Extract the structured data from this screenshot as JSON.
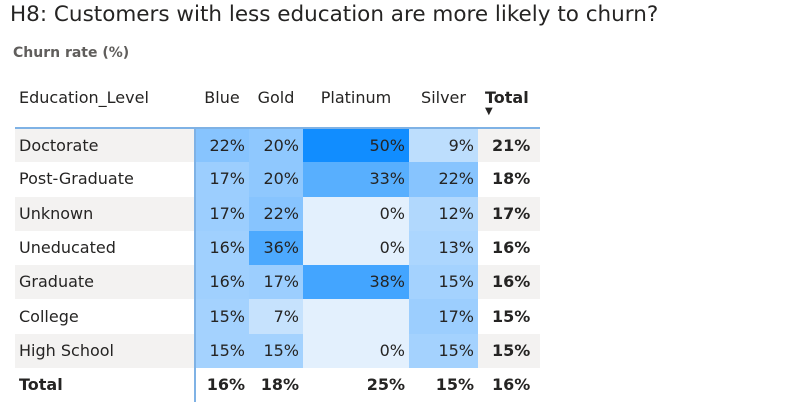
{
  "header": {
    "title": "H8: Customers with less education are more likely to churn?",
    "subtitle": "Churn rate (%)"
  },
  "chart_data": {
    "type": "table",
    "title": "H8: Customers with less education are more likely to churn?",
    "subtitle": "Churn rate (%)",
    "row_header": "Education_Level",
    "columns": [
      "Blue",
      "Gold",
      "Platinum",
      "Silver",
      "Total"
    ],
    "sort": {
      "column": "Total",
      "direction": "descending"
    },
    "rows": [
      {
        "label": "Doctorate",
        "values": [
          "22%",
          "20%",
          "50%",
          "9%",
          "21%"
        ]
      },
      {
        "label": "Post-Graduate",
        "values": [
          "17%",
          "20%",
          "33%",
          "22%",
          "18%"
        ]
      },
      {
        "label": "Unknown",
        "values": [
          "17%",
          "22%",
          "0%",
          "12%",
          "17%"
        ]
      },
      {
        "label": "Uneducated",
        "values": [
          "16%",
          "36%",
          "0%",
          "13%",
          "16%"
        ]
      },
      {
        "label": "Graduate",
        "values": [
          "16%",
          "17%",
          "38%",
          "15%",
          "16%"
        ]
      },
      {
        "label": "College",
        "values": [
          "15%",
          "7%",
          "",
          "17%",
          "15%"
        ]
      },
      {
        "label": "High School",
        "values": [
          "15%",
          "15%",
          "0%",
          "15%",
          "15%"
        ]
      }
    ],
    "total_row": {
      "label": "Total",
      "values": [
        "16%",
        "18%",
        "25%",
        "15%",
        "16%"
      ]
    },
    "heatmap": {
      "min_value": 0,
      "max_value": 50,
      "low_color": "#e3f0fd",
      "high_color": "#118dff"
    }
  },
  "colors": {
    "accent_border": "#7fb2e5",
    "stripe": "#f3f2f1",
    "text": "#252423",
    "subtitle": "#605e5c"
  },
  "icons": {
    "sort": "sort-descending-arrow-icon"
  }
}
